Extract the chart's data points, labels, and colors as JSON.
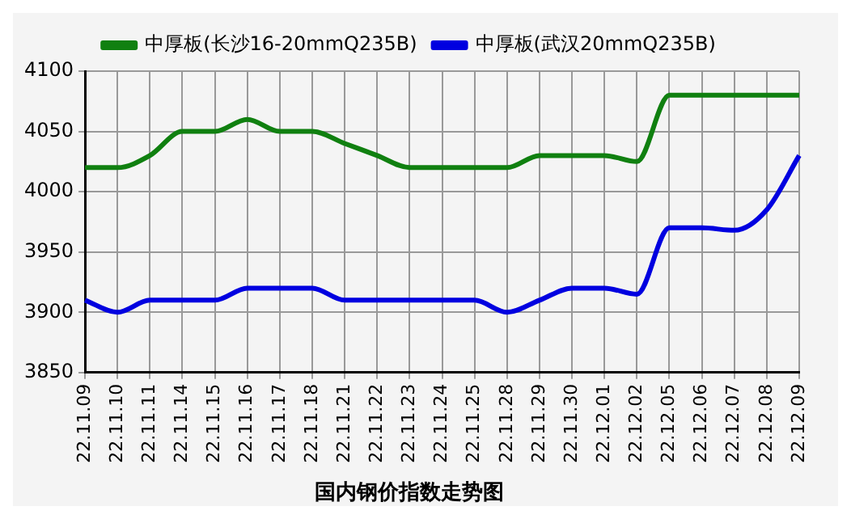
{
  "chart_data": {
    "type": "line",
    "title": "国内钢价指数走势图",
    "categories": [
      "22.11.09",
      "22.11.10",
      "22.11.11",
      "22.11.14",
      "22.11.15",
      "22.11.16",
      "22.11.17",
      "22.11.18",
      "22.11.21",
      "22.11.22",
      "22.11.23",
      "22.11.24",
      "22.11.25",
      "22.11.28",
      "22.11.29",
      "22.11.30",
      "22.12.01",
      "22.12.02",
      "22.12.05",
      "22.12.06",
      "22.12.07",
      "22.12.08",
      "22.12.09"
    ],
    "series": [
      {
        "name": "中厚板(长沙16-20mmQ235B)",
        "color": "#108010",
        "values": [
          4020,
          4020,
          4030,
          4050,
          4050,
          4060,
          4050,
          4050,
          4040,
          4030,
          4020,
          4020,
          4020,
          4020,
          4030,
          4030,
          4030,
          4025,
          4080,
          4080,
          4080,
          4080,
          4080
        ]
      },
      {
        "name": "中厚板(武汉20mmQ235B)",
        "color": "#0000e0",
        "values": [
          3910,
          3900,
          3910,
          3910,
          3910,
          3920,
          3920,
          3920,
          3910,
          3910,
          3910,
          3910,
          3910,
          3900,
          3910,
          3920,
          3920,
          3915,
          3970,
          3970,
          3968,
          3985,
          4030
        ]
      }
    ],
    "ylim": [
      3850,
      4100
    ],
    "yticks": [
      3850,
      3900,
      3950,
      4000,
      4050,
      4100
    ],
    "grid": true,
    "legend": "top",
    "marker": "none",
    "line_style": "solid"
  }
}
